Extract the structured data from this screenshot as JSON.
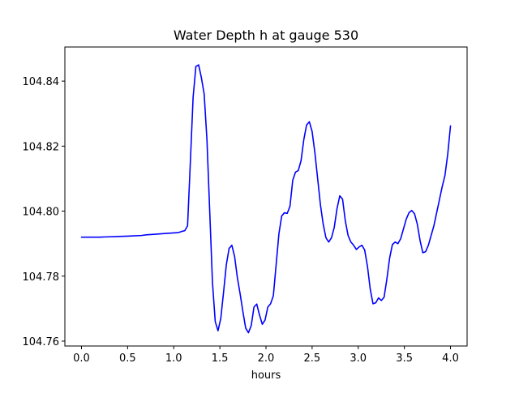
{
  "chart_data": {
    "type": "line",
    "title": "Water Depth h at gauge 530",
    "xlabel": "hours",
    "ylabel": "",
    "xlim": [
      -0.18,
      4.18
    ],
    "ylim": [
      104.7585,
      104.8505
    ],
    "xticks": [
      0.0,
      0.5,
      1.0,
      1.5,
      2.0,
      2.5,
      3.0,
      3.5,
      4.0
    ],
    "xtick_labels": [
      "0.0",
      "0.5",
      "1.0",
      "1.5",
      "2.0",
      "2.5",
      "3.0",
      "3.5",
      "4.0"
    ],
    "yticks": [
      104.76,
      104.78,
      104.8,
      104.82,
      104.84
    ],
    "ytick_labels": [
      "104.76",
      "104.78",
      "104.80",
      "104.82",
      "104.84"
    ],
    "grid": false,
    "legend": "none",
    "series": [
      {
        "color": "#0000ff",
        "x": [
          0.0,
          0.2,
          0.4,
          0.5,
          0.65,
          0.7,
          0.8,
          0.9,
          1.0,
          1.05,
          1.08,
          1.12,
          1.15,
          1.18,
          1.21,
          1.24,
          1.27,
          1.3,
          1.33,
          1.36,
          1.39,
          1.42,
          1.45,
          1.48,
          1.51,
          1.54,
          1.57,
          1.6,
          1.63,
          1.66,
          1.69,
          1.72,
          1.75,
          1.78,
          1.81,
          1.84,
          1.87,
          1.9,
          1.93,
          1.96,
          1.99,
          2.02,
          2.05,
          2.08,
          2.11,
          2.14,
          2.17,
          2.2,
          2.23,
          2.26,
          2.29,
          2.32,
          2.35,
          2.38,
          2.41,
          2.44,
          2.47,
          2.5,
          2.53,
          2.56,
          2.59,
          2.62,
          2.65,
          2.68,
          2.71,
          2.74,
          2.77,
          2.8,
          2.83,
          2.86,
          2.89,
          2.92,
          2.95,
          2.98,
          3.01,
          3.04,
          3.07,
          3.1,
          3.13,
          3.16,
          3.19,
          3.22,
          3.25,
          3.28,
          3.31,
          3.34,
          3.37,
          3.4,
          3.43,
          3.46,
          3.49,
          3.52,
          3.55,
          3.58,
          3.61,
          3.64,
          3.67,
          3.7,
          3.73,
          3.76,
          3.79,
          3.82,
          3.85,
          3.88,
          3.91,
          3.94,
          3.97,
          4.0
        ],
        "y": [
          104.792,
          104.792,
          104.7922,
          104.7923,
          104.7925,
          104.7927,
          104.7929,
          104.7931,
          104.7933,
          104.7934,
          104.7937,
          104.794,
          104.7955,
          104.815,
          104.835,
          104.8445,
          104.845,
          104.841,
          104.836,
          104.822,
          104.8,
          104.778,
          104.766,
          104.7632,
          104.767,
          104.775,
          104.7835,
          104.7885,
          104.7895,
          104.786,
          104.7795,
          104.7745,
          104.769,
          104.764,
          104.7626,
          104.7648,
          104.7705,
          104.7714,
          104.768,
          104.7652,
          104.7665,
          104.7705,
          104.7715,
          104.774,
          104.7835,
          104.793,
          104.7985,
          104.7995,
          104.7993,
          104.8015,
          104.8095,
          104.812,
          104.8125,
          104.8155,
          104.822,
          104.8265,
          104.8275,
          104.8245,
          104.818,
          104.81,
          104.802,
          104.796,
          104.7918,
          104.7905,
          104.7918,
          104.795,
          104.8008,
          104.8047,
          104.8037,
          104.797,
          104.7925,
          104.7905,
          104.7895,
          104.7882,
          104.789,
          104.7895,
          104.788,
          104.783,
          104.776,
          104.7715,
          104.7718,
          104.7733,
          104.7725,
          104.7735,
          104.779,
          104.7855,
          104.7897,
          104.7905,
          104.79,
          104.7915,
          104.7945,
          104.7975,
          104.7995,
          104.8002,
          104.7992,
          104.796,
          104.791,
          104.7872,
          104.7875,
          104.7895,
          104.7925,
          104.7955,
          104.7995,
          104.8035,
          104.8075,
          104.811,
          104.8175,
          104.8262
        ]
      }
    ]
  }
}
